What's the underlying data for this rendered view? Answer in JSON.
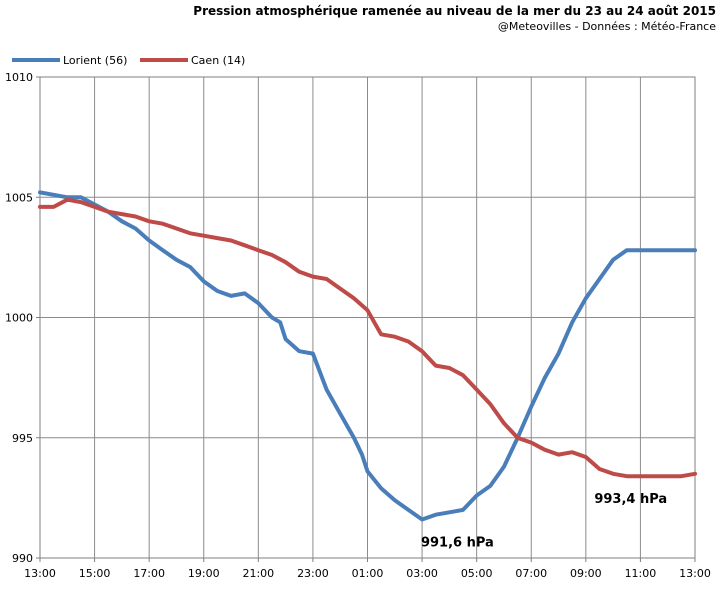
{
  "chart_data": {
    "type": "line",
    "title": "Pression atmosphérique ramenée au niveau de la mer du 23 au 24 août 2015",
    "subtitle": "@Meteovilles - Données : Météo-France",
    "x_tick_labels": [
      "13:00",
      "15:00",
      "17:00",
      "19:00",
      "21:00",
      "23:00",
      "01:00",
      "03:00",
      "05:00",
      "07:00",
      "09:00",
      "11:00",
      "13:00"
    ],
    "x_unit": "hours since 13:00 on 23 Aug",
    "xlim": [
      0,
      24
    ],
    "ylim": [
      990,
      1010
    ],
    "y_ticks": [
      990,
      995,
      1000,
      1005,
      1010
    ],
    "grid": true,
    "legend_position": "top-left",
    "series": [
      {
        "name": "Lorient (56)",
        "color": "#4a7ebb",
        "x": [
          0,
          0.5,
          1,
          1.5,
          2,
          2.5,
          3,
          3.5,
          4,
          4.5,
          5,
          5.5,
          6,
          6.5,
          7,
          7.5,
          8,
          8.5,
          8.8,
          9,
          9.5,
          10,
          10.5,
          11,
          11.5,
          11.8,
          12,
          12.5,
          13,
          13.5,
          14,
          14.5,
          15,
          15.5,
          16,
          16.5,
          17,
          17.5,
          18,
          18.5,
          19,
          19.5,
          20,
          20.5,
          21,
          21.5,
          22,
          22.5,
          23,
          23.5,
          24
        ],
        "values": [
          1005.2,
          1005.1,
          1005.0,
          1005.0,
          1004.7,
          1004.4,
          1004.0,
          1003.7,
          1003.2,
          1002.8,
          1002.4,
          1002.1,
          1001.5,
          1001.1,
          1000.9,
          1001.0,
          1000.6,
          1000.0,
          999.8,
          999.1,
          998.6,
          998.5,
          997.0,
          996.0,
          995.0,
          994.3,
          993.6,
          992.9,
          992.4,
          992.0,
          991.6,
          991.8,
          991.9,
          992.0,
          992.6,
          993.0,
          993.8,
          995.0,
          996.3,
          997.5,
          998.5,
          999.8,
          1000.8,
          1001.6,
          1002.4,
          1002.8,
          1002.8,
          1002.8,
          1002.8,
          1002.8,
          1002.8
        ]
      },
      {
        "name": "Caen (14)",
        "color": "#be4b48",
        "x": [
          0,
          0.5,
          1,
          1.5,
          2,
          2.5,
          3,
          3.5,
          4,
          4.5,
          5,
          5.5,
          6,
          6.5,
          7,
          7.5,
          8,
          8.5,
          9,
          9.5,
          10,
          10.5,
          11,
          11.5,
          12,
          12.5,
          13,
          13.5,
          14,
          14.5,
          15,
          15.5,
          16,
          16.5,
          17,
          17.5,
          18,
          18.5,
          19,
          19.5,
          20,
          20.5,
          21,
          21.5,
          22,
          22.5,
          23,
          23.5,
          24
        ],
        "values": [
          1004.6,
          1004.6,
          1004.9,
          1004.8,
          1004.6,
          1004.4,
          1004.3,
          1004.2,
          1004.0,
          1003.9,
          1003.7,
          1003.5,
          1003.4,
          1003.3,
          1003.2,
          1003.0,
          1002.8,
          1002.6,
          1002.3,
          1001.9,
          1001.7,
          1001.6,
          1001.2,
          1000.8,
          1000.3,
          999.3,
          999.2,
          999.0,
          998.6,
          998.0,
          997.9,
          997.6,
          997.0,
          996.4,
          995.6,
          995.0,
          994.8,
          994.5,
          994.3,
          994.4,
          994.2,
          993.7,
          993.5,
          993.4,
          993.4,
          993.4,
          993.4,
          993.4,
          993.5
        ]
      }
    ],
    "annotations": [
      {
        "text": "991,6 hPa",
        "series": "Lorient (56)",
        "x": 15.0,
        "y": 991.6
      },
      {
        "text": "993,4 hPa",
        "series": "Caen (14)",
        "x": 21.5,
        "y": 993.4
      }
    ]
  }
}
